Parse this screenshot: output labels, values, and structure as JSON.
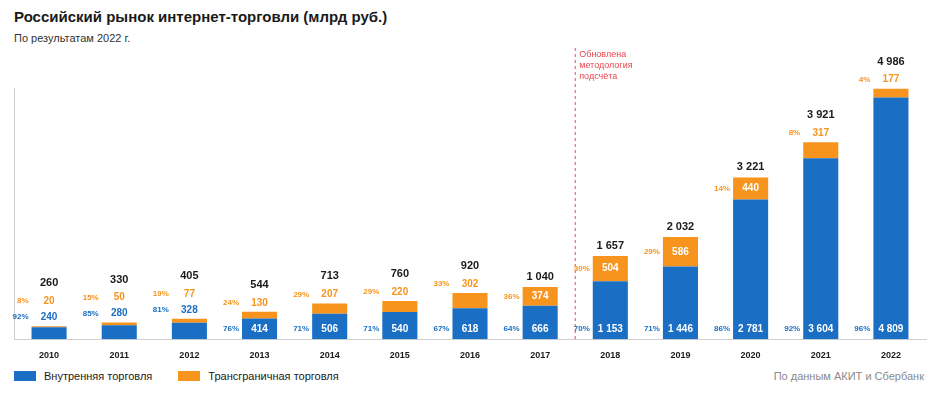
{
  "chart_data": {
    "type": "bar",
    "title": "Российский рынок интернет-торговли (млрд руб.)",
    "subtitle": "По результатам 2022 г.",
    "source": "По данным АКИТ и Сбербанк",
    "categories": [
      "2010",
      "2011",
      "2012",
      "2013",
      "2014",
      "2015",
      "2016",
      "2017",
      "2018",
      "2019",
      "2020",
      "2021",
      "2022"
    ],
    "stacked": true,
    "data_labels": true,
    "tick_labels": "x",
    "grid": false,
    "legend": "bottom left",
    "ylim": [
      0,
      5000
    ],
    "series": [
      {
        "name": "Внутренняя торговля",
        "color": "#1a6fc4",
        "values": [
          240,
          280,
          328,
          414,
          506,
          540,
          618,
          666,
          1153,
          1446,
          2781,
          3604,
          4809
        ],
        "value_labels": [
          "240",
          "280",
          "328",
          "414",
          "506",
          "540",
          "618",
          "666",
          "1 153",
          "1 446",
          "2 781",
          "3 604",
          "4 809"
        ],
        "shares": [
          92,
          85,
          81,
          76,
          71,
          71,
          67,
          64,
          70,
          71,
          86,
          92,
          96
        ],
        "share_labels": [
          "92%",
          "85%",
          "81%",
          "76%",
          "71%",
          "71%",
          "67%",
          "64%",
          "70%",
          "71%",
          "86%",
          "92%",
          "96%"
        ]
      },
      {
        "name": "Трансграничная торговля",
        "color": "#f7941d",
        "values": [
          20,
          50,
          77,
          130,
          207,
          220,
          302,
          374,
          504,
          586,
          440,
          317,
          177
        ],
        "shares": [
          8,
          15,
          19,
          24,
          29,
          29,
          33,
          36,
          30,
          29,
          14,
          8,
          4
        ],
        "share_labels": [
          "8%",
          "15%",
          "19%",
          "24%",
          "29%",
          "29%",
          "33%",
          "36%",
          "30%",
          "29%",
          "14%",
          "8%",
          "4%"
        ]
      }
    ],
    "totals": [
      260,
      330,
      405,
      544,
      713,
      760,
      920,
      1040,
      1657,
      2032,
      3221,
      3921,
      4986
    ],
    "total_labels": [
      "260",
      "330",
      "405",
      "544",
      "713",
      "760",
      "920",
      "1 040",
      "1 657",
      "2 032",
      "3 221",
      "3 921",
      "4 986"
    ],
    "annotation": {
      "text_lines": [
        "Обновлена",
        "методология",
        "подсчёта"
      ],
      "after": "2017",
      "color": "#e8474f"
    }
  }
}
